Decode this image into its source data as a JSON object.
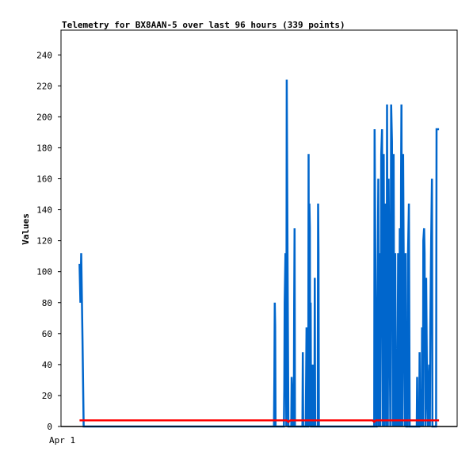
{
  "chart_data": {
    "type": "line",
    "title": "Telemetry for BX8AAN-5 over last 96 hours (339 points)",
    "ylabel": "Values",
    "xlabel": "",
    "x_tick_labels": [
      "Apr 1"
    ],
    "ylim": [
      0,
      256
    ],
    "y_ticks": [
      0,
      20,
      40,
      60,
      80,
      100,
      120,
      140,
      160,
      180,
      200,
      220,
      240
    ],
    "grid": false,
    "legend": "none",
    "series": [
      {
        "color": "#0066cc",
        "points": [
          [
            4.5,
            105
          ],
          [
            4.7,
            80
          ],
          [
            4.9,
            112
          ],
          [
            5.2,
            57
          ],
          [
            5.5,
            0
          ],
          [
            51.6,
            0
          ],
          [
            51.7,
            32
          ],
          [
            51.8,
            80
          ],
          [
            51.9,
            65
          ],
          [
            52.0,
            0
          ],
          [
            54.0,
            0
          ],
          [
            54.1,
            24
          ],
          [
            54.2,
            80
          ],
          [
            54.4,
            112
          ],
          [
            54.6,
            0
          ],
          [
            54.7,
            224
          ],
          [
            54.9,
            112
          ],
          [
            55.1,
            0
          ],
          [
            55.8,
            0
          ],
          [
            55.9,
            32
          ],
          [
            56.0,
            24
          ],
          [
            56.1,
            0
          ],
          [
            56.4,
            0
          ],
          [
            56.5,
            80
          ],
          [
            56.6,
            128
          ],
          [
            56.7,
            0
          ],
          [
            58.5,
            0
          ],
          [
            58.6,
            48
          ],
          [
            58.7,
            0
          ],
          [
            59.3,
            0
          ],
          [
            59.4,
            32
          ],
          [
            59.5,
            64
          ],
          [
            59.6,
            24
          ],
          [
            59.7,
            0
          ],
          [
            59.9,
            0
          ],
          [
            60.0,
            176
          ],
          [
            60.1,
            0
          ],
          [
            60.2,
            144
          ],
          [
            60.3,
            128
          ],
          [
            60.4,
            0
          ],
          [
            60.5,
            80
          ],
          [
            60.6,
            0
          ],
          [
            60.9,
            0
          ],
          [
            61.0,
            40
          ],
          [
            61.1,
            0
          ],
          [
            61.4,
            0
          ],
          [
            61.5,
            96
          ],
          [
            61.6,
            0
          ],
          [
            62.2,
            0
          ],
          [
            62.3,
            144
          ],
          [
            62.4,
            112
          ],
          [
            62.5,
            0
          ],
          [
            75.9,
            0
          ],
          [
            76.0,
            192
          ],
          [
            76.2,
            96
          ],
          [
            76.4,
            0
          ],
          [
            76.5,
            0
          ],
          [
            76.7,
            80
          ],
          [
            76.9,
            160
          ],
          [
            77.0,
            0
          ],
          [
            77.2,
            112
          ],
          [
            77.4,
            0
          ],
          [
            77.6,
            176
          ],
          [
            77.8,
            192
          ],
          [
            78.0,
            0
          ],
          [
            78.2,
            176
          ],
          [
            78.4,
            0
          ],
          [
            78.5,
            144
          ],
          [
            78.7,
            48
          ],
          [
            78.9,
            0
          ],
          [
            79.0,
            208
          ],
          [
            79.2,
            0
          ],
          [
            79.4,
            160
          ],
          [
            79.6,
            80
          ],
          [
            79.8,
            0
          ],
          [
            80.0,
            208
          ],
          [
            80.2,
            184
          ],
          [
            80.4,
            0
          ],
          [
            80.6,
            176
          ],
          [
            80.8,
            0
          ],
          [
            81.0,
            112
          ],
          [
            81.2,
            0
          ],
          [
            81.3,
            32
          ],
          [
            81.5,
            0
          ],
          [
            81.7,
            112
          ],
          [
            81.9,
            0
          ],
          [
            82.1,
            128
          ],
          [
            82.3,
            0
          ],
          [
            82.4,
            160
          ],
          [
            82.5,
            208
          ],
          [
            82.7,
            0
          ],
          [
            82.9,
            176
          ],
          [
            83.1,
            80
          ],
          [
            83.3,
            0
          ],
          [
            83.5,
            112
          ],
          [
            83.7,
            0
          ],
          [
            84.0,
            0
          ],
          [
            84.1,
            112
          ],
          [
            84.3,
            144
          ],
          [
            84.5,
            0
          ],
          [
            86.2,
            0
          ],
          [
            86.3,
            32
          ],
          [
            86.4,
            0
          ],
          [
            86.8,
            0
          ],
          [
            86.9,
            48
          ],
          [
            87.0,
            0
          ],
          [
            87.2,
            24
          ],
          [
            87.4,
            0
          ],
          [
            87.5,
            64
          ],
          [
            87.7,
            0
          ],
          [
            87.8,
            120
          ],
          [
            88.0,
            128
          ],
          [
            88.1,
            112
          ],
          [
            88.3,
            0
          ],
          [
            88.5,
            96
          ],
          [
            88.7,
            24
          ],
          [
            88.9,
            0
          ],
          [
            89.1,
            32
          ],
          [
            89.2,
            40
          ],
          [
            89.4,
            0
          ],
          [
            89.5,
            64
          ],
          [
            89.7,
            120
          ],
          [
            89.9,
            160
          ],
          [
            90.0,
            0
          ],
          [
            90.9,
            0
          ],
          [
            91.0,
            192
          ],
          [
            91.6,
            192
          ]
        ]
      },
      {
        "color": "#ff0000",
        "points": [
          [
            4.5,
            4
          ],
          [
            54.7,
            4
          ],
          [
            55.1,
            3
          ],
          [
            55.6,
            4
          ],
          [
            75.5,
            4
          ],
          [
            75.9,
            3
          ],
          [
            76.3,
            4
          ],
          [
            91.6,
            4
          ]
        ]
      }
    ]
  }
}
